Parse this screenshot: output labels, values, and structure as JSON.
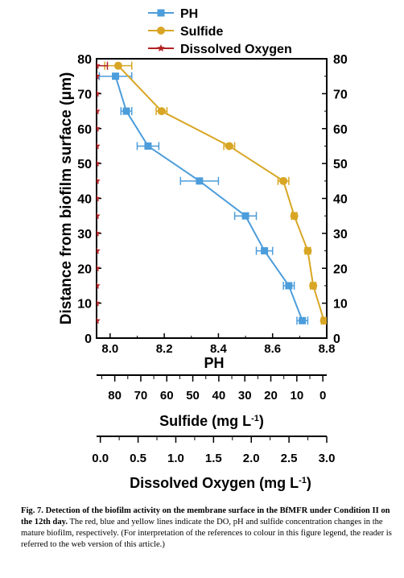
{
  "chart_data": {
    "type": "line",
    "ylabel": "Distance from biofilm surface (μm)",
    "ylim": [
      0,
      80
    ],
    "yticks": [
      0,
      10,
      20,
      30,
      40,
      50,
      60,
      70,
      80
    ],
    "grid": false,
    "legend_placement": "top",
    "axes": {
      "ph": {
        "label": "PH",
        "range": [
          7.95,
          8.8
        ],
        "ticks": [
          "8.0",
          "8.2",
          "8.4",
          "8.6",
          "8.8"
        ]
      },
      "sulfide": {
        "label": "Sulfide (mg L",
        "label_sup": "-1",
        "label_tail": ")",
        "range": [
          87,
          -1.5
        ],
        "ticks": [
          "80",
          "70",
          "60",
          "50",
          "40",
          "30",
          "20",
          "10",
          "0"
        ]
      },
      "oxygen": {
        "label": "Dissolved Oxygen (mg L",
        "label_sup": "-1",
        "label_tail": ")",
        "range": [
          -0.05,
          3.0
        ],
        "ticks": [
          "0.0",
          "0.5",
          "1.0",
          "1.5",
          "2.0",
          "2.5",
          "3.0"
        ]
      }
    },
    "series": [
      {
        "name": "PH",
        "color": "#4c9ddb",
        "marker": "square",
        "x": [
          8.02,
          8.06,
          8.14,
          8.33,
          8.5,
          8.57,
          8.66,
          8.71
        ],
        "y": [
          75,
          65,
          55,
          45,
          35,
          25,
          15,
          5
        ],
        "xerr": [
          0.06,
          0.02,
          0.04,
          0.07,
          0.04,
          0.03,
          0.02,
          0.02
        ],
        "xerr_dir": [
          "both",
          "both",
          "both",
          "both",
          "both",
          "both",
          "both",
          "both"
        ]
      },
      {
        "name": "Sulfide",
        "color": "#d8a624",
        "marker": "circle",
        "x": [
          8.03,
          8.19,
          8.44,
          8.64,
          8.68,
          8.73,
          8.75,
          8.79
        ],
        "y": [
          78,
          65,
          55,
          45,
          35,
          25,
          15,
          5
        ],
        "xerr": [
          0.05,
          0.02,
          0.02,
          0.02,
          0.01,
          0.01,
          0.01,
          0.01
        ],
        "xerr_dir": [
          "both",
          "both",
          "both",
          "both",
          "both",
          "both",
          "both",
          "both"
        ]
      },
      {
        "name": "Dissolved Oxygen",
        "color": "#b22222",
        "marker": "star",
        "x": [
          7.95,
          7.95,
          7.95,
          7.95,
          7.95,
          7.95,
          7.95,
          7.95,
          7.95,
          7.95,
          7.95,
          7.95,
          7.95,
          7.95,
          7.95,
          7.95
        ],
        "y": [
          78,
          75,
          70,
          65,
          60,
          55,
          50,
          45,
          40,
          35,
          30,
          25,
          20,
          15,
          10,
          5
        ],
        "xerr": [
          0.04,
          0,
          0,
          0,
          0,
          0,
          0,
          0,
          0,
          0,
          0,
          0,
          0,
          0,
          0,
          0
        ],
        "xerr_dir": [
          "right",
          "none",
          "none",
          "none",
          "none",
          "none",
          "none",
          "none",
          "none",
          "none",
          "none",
          "none",
          "none",
          "none",
          "none",
          "none"
        ]
      }
    ]
  },
  "caption": {
    "lead": "Fig. 7. Detection of the biofilm activity on the membrane surface in the BfMFR under Condition II on the 12th day.",
    "body": " The red, blue and yellow lines indicate the DO, pH and sulfide concentration changes in the mature biofilm, respectively. (For interpretation of the references to colour in this figure legend, the reader is referred to the web version of this article.)"
  }
}
